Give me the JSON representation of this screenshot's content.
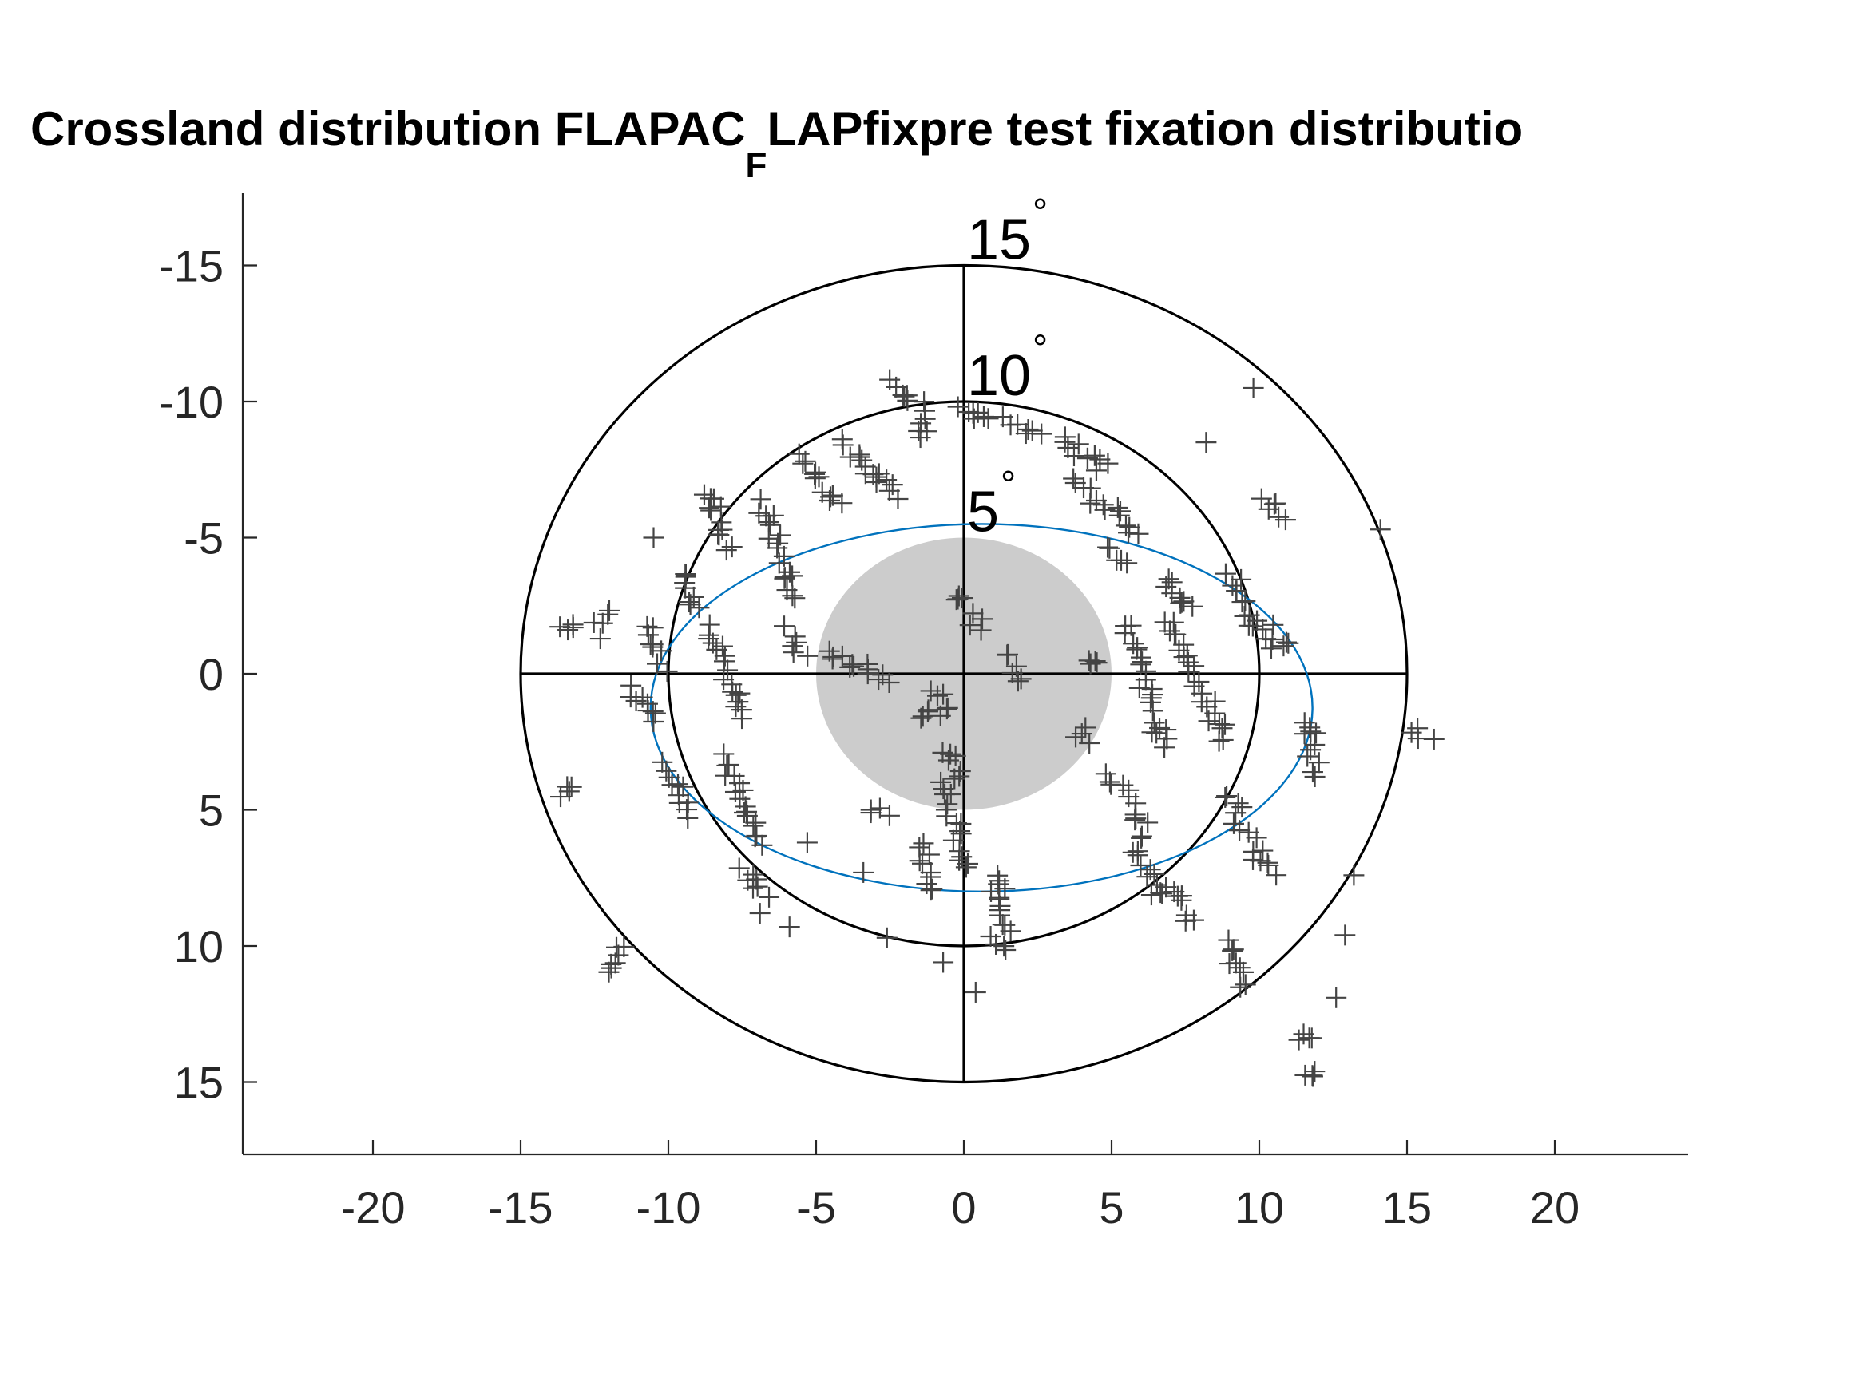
{
  "chart_data": {
    "type": "scatter",
    "title": {
      "prefix": "Crossland distribution FLAPAC",
      "subscript": "F",
      "suffix": "LAPfixpre test fixation distributio"
    },
    "xlabel": "",
    "ylabel": "",
    "xlim": [
      -24.0,
      24.5
    ],
    "ylim": [
      17.7,
      -17.7
    ],
    "y_axis_reversed": true,
    "x_ticks": [
      -20,
      -15,
      -10,
      -5,
      0,
      5,
      10,
      15,
      20
    ],
    "x_tick_labels": [
      "-20",
      "-15",
      "-10",
      "-5",
      "0",
      "5",
      "10",
      "15",
      "20"
    ],
    "y_ticks": [
      -15,
      -10,
      -5,
      0,
      5,
      10,
      15
    ],
    "y_tick_labels": [
      "-15",
      "-10",
      "-5",
      "0",
      "5",
      "10",
      "15"
    ],
    "grid": false,
    "legend": "none",
    "rings": [
      {
        "radius": 15,
        "label": "15",
        "unit": "°"
      },
      {
        "radius": 10,
        "label": "10",
        "unit": "°"
      },
      {
        "radius": 5,
        "label": "5",
        "unit": "°"
      }
    ],
    "central_disk": {
      "radius": 5,
      "color": "#cccccc"
    },
    "fit_ellipse": {
      "cx": 0.6,
      "cy": 1.25,
      "rx": 11.2,
      "ry": 6.75,
      "color": "#0072BD"
    },
    "marker": {
      "symbol": "+",
      "color": "#444444"
    },
    "clusters": [
      {
        "x": [
          -11.5,
          -12.0
        ],
        "y": [
          10.0,
          11.0
        ]
      },
      {
        "x": [
          -12.0,
          -12.5
        ],
        "y": [
          -2.2,
          -1.5
        ]
      },
      {
        "x": [
          -13.5,
          -13.3
        ],
        "y": [
          -1.7,
          -1.6
        ]
      },
      {
        "x": [
          -13.5,
          -13.2
        ],
        "y": [
          4.3,
          4.2
        ]
      },
      {
        "x": [
          -11.2,
          -10.3
        ],
        "y": [
          0.5,
          1.8
        ]
      },
      {
        "x": [
          -10.8,
          -10.2
        ],
        "y": [
          -1.8,
          -0.3
        ]
      },
      {
        "x": [
          -9.6,
          -9.0
        ],
        "y": [
          -3.8,
          -2.4
        ]
      },
      {
        "x": [
          -8.6,
          -8.0
        ],
        "y": [
          -6.8,
          -4.5
        ]
      },
      {
        "x": [
          -8.6,
          -7.3
        ],
        "y": [
          -1.6,
          1.6
        ]
      },
      {
        "x": [
          -8.1,
          -7.0
        ],
        "y": [
          3.0,
          6.2
        ]
      },
      {
        "x": [
          -7.4,
          -6.8
        ],
        "y": [
          7.2,
          8.2
        ]
      },
      {
        "x": [
          -10.0,
          -9.3
        ],
        "y": [
          3.3,
          5.3
        ]
      },
      {
        "x": [
          -6.8,
          -5.7
        ],
        "y": [
          -6.2,
          -2.8
        ]
      },
      {
        "x": [
          -6.0,
          -5.5
        ],
        "y": [
          -1.6,
          -0.7
        ]
      },
      {
        "x": [
          -5.5,
          -4.3
        ],
        "y": [
          -8.0,
          -6.2
        ]
      },
      {
        "x": [
          -4.0,
          -3.1
        ],
        "y": [
          -8.5,
          -7.2
        ]
      },
      {
        "x": [
          -3.0,
          -2.2
        ],
        "y": [
          -7.3,
          -6.5
        ]
      },
      {
        "x": [
          -2.5,
          -1.8
        ],
        "y": [
          -10.7,
          -10.1
        ]
      },
      {
        "x": [
          -1.4,
          -1.3
        ],
        "y": [
          -9.8,
          -8.6
        ]
      },
      {
        "x": [
          0.0,
          1.0
        ],
        "y": [
          -9.7,
          -9.3
        ]
      },
      {
        "x": [
          1.5,
          2.5
        ],
        "y": [
          -9.4,
          -8.7
        ]
      },
      {
        "x": [
          -4.6,
          -2.5
        ],
        "y": [
          -0.8,
          0.3
        ]
      },
      {
        "x": [
          -0.9,
          -0.7
        ],
        "y": [
          0.5,
          1.6
        ]
      },
      {
        "x": [
          -1.4,
          -1.3
        ],
        "y": [
          1.3,
          1.5
        ]
      },
      {
        "x": [
          -0.2,
          0.0
        ],
        "y": [
          -2.9,
          -2.6
        ]
      },
      {
        "x": [
          0.3,
          0.7
        ],
        "y": [
          -2.1,
          -1.8
        ]
      },
      {
        "x": [
          -0.6,
          -0.1
        ],
        "y": [
          2.8,
          4.0
        ]
      },
      {
        "x": [
          -0.6,
          0.0
        ],
        "y": [
          4.0,
          7.2
        ]
      },
      {
        "x": [
          -1.5,
          -1.1
        ],
        "y": [
          6.3,
          8.0
        ]
      },
      {
        "x": [
          1.0,
          1.5
        ],
        "y": [
          7.3,
          9.6
        ]
      },
      {
        "x": [
          1.1,
          1.6
        ],
        "y": [
          9.8,
          10.1
        ]
      },
      {
        "x": [
          -3.3,
          -2.7
        ],
        "y": [
          4.9,
          5.2
        ]
      },
      {
        "x": [
          1.6,
          1.9
        ],
        "y": [
          -0.7,
          0.2
        ]
      },
      {
        "x": [
          4.2,
          4.4
        ],
        "y": [
          -0.6,
          -0.5
        ]
      },
      {
        "x": [
          3.9,
          4.1
        ],
        "y": [
          2.2,
          2.4
        ]
      },
      {
        "x": [
          3.3,
          4.8
        ],
        "y": [
          -8.6,
          -7.5
        ]
      },
      {
        "x": [
          5.0,
          5.4
        ],
        "y": [
          -4.7,
          -4.0
        ]
      },
      {
        "x": [
          3.8,
          5.9
        ],
        "y": [
          -7.0,
          -5.1
        ]
      },
      {
        "x": [
          6.8,
          7.7
        ],
        "y": [
          -3.6,
          -2.4
        ]
      },
      {
        "x": [
          5.5,
          6.8
        ],
        "y": [
          -1.8,
          2.8
        ]
      },
      {
        "x": [
          6.9,
          8.9
        ],
        "y": [
          -2.0,
          2.5
        ]
      },
      {
        "x": [
          9.0,
          10.2
        ],
        "y": [
          -3.6,
          -1.1
        ]
      },
      {
        "x": [
          10.5,
          11.0
        ],
        "y": [
          -1.6,
          -1.0
        ]
      },
      {
        "x": [
          10.2,
          10.9
        ],
        "y": [
          -6.4,
          -5.8
        ]
      },
      {
        "x": [
          11.5,
          12.0
        ],
        "y": [
          1.6,
          3.6
        ]
      },
      {
        "x": [
          5.0,
          6.0
        ],
        "y": [
          3.8,
          5.5
        ]
      },
      {
        "x": [
          5.8,
          6.6
        ],
        "y": [
          6.0,
          8.2
        ]
      },
      {
        "x": [
          7.0,
          7.7
        ],
        "y": [
          7.8,
          9.1
        ]
      },
      {
        "x": [
          9.0,
          9.5
        ],
        "y": [
          4.5,
          5.8
        ]
      },
      {
        "x": [
          9.7,
          10.4
        ],
        "y": [
          6.2,
          7.3
        ]
      },
      {
        "x": [
          8.9,
          9.4
        ],
        "y": [
          9.9,
          11.5
        ]
      },
      {
        "x": [
          11.4,
          11.7
        ],
        "y": [
          13.3,
          13.6
        ]
      },
      {
        "x": [
          11.7,
          11.9
        ],
        "y": [
          14.6,
          14.9
        ]
      },
      {
        "x": [
          15.2,
          15.7
        ],
        "y": [
          2.1,
          2.5
        ]
      }
    ],
    "isolated_points": [
      {
        "x": -10.5,
        "y": -5.0
      },
      {
        "x": -5.3,
        "y": 6.2
      },
      {
        "x": -3.4,
        "y": 7.3
      },
      {
        "x": -6.9,
        "y": 8.8
      },
      {
        "x": -5.9,
        "y": 9.3
      },
      {
        "x": -2.6,
        "y": 9.7
      },
      {
        "x": -0.7,
        "y": 10.6
      },
      {
        "x": 0.4,
        "y": 11.7
      },
      {
        "x": 8.2,
        "y": -8.5
      },
      {
        "x": 9.8,
        "y": -10.5
      },
      {
        "x": 14.1,
        "y": -5.3
      },
      {
        "x": 13.2,
        "y": 7.4
      },
      {
        "x": 12.9,
        "y": 9.6
      },
      {
        "x": 12.6,
        "y": 11.9
      }
    ]
  }
}
